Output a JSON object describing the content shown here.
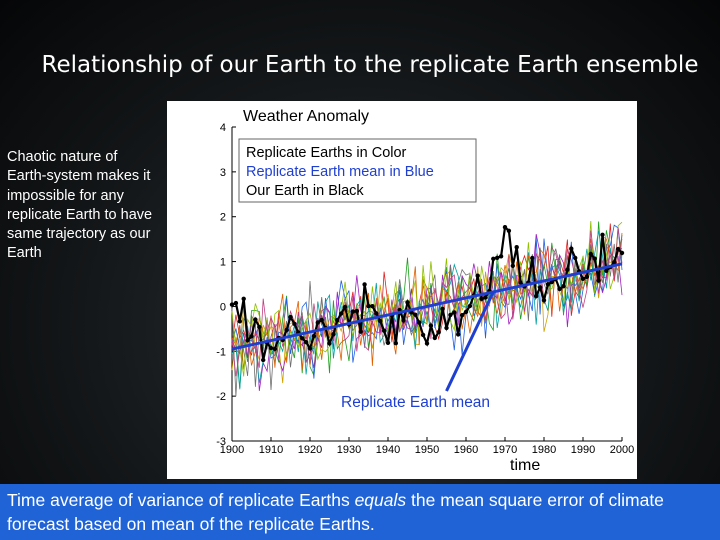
{
  "slide": {
    "title": "Relationship of our Earth to the replicate Earth ensemble",
    "left_note": "Chaotic nature of Earth-system makes it impossible for any replicate Earth to have same trajectory as our Earth",
    "footer": {
      "part1": "Time average of variance of replicate Earths ",
      "emphasis": "equals",
      "part2": " the mean square error of climate forecast based on mean of the replicate Earths."
    }
  },
  "chart_data": {
    "type": "line",
    "title": "Weather Anomaly",
    "xlabel": "time",
    "ylabel": "",
    "xlim": [
      1900,
      2000
    ],
    "ylim": [
      -3,
      4
    ],
    "x_ticks": [
      "1900",
      "1910",
      "1920",
      "1930",
      "1940",
      "1950",
      "1960",
      "1970",
      "1980",
      "1990",
      "2000"
    ],
    "y_ticks": [
      "-3",
      "-2",
      "-1",
      "0",
      "1",
      "2",
      "3",
      "4"
    ],
    "legend": [
      "Replicate Earths in Color",
      "Replicate Earth mean in Blue",
      "Our Earth in Black"
    ],
    "annotation": "Replicate Earth mean",
    "series": [
      {
        "name": "Replicate Earth mean",
        "color": "#1f3fd0",
        "x": [
          1900,
          2000
        ],
        "values": [
          -0.95,
          0.95
        ]
      },
      {
        "name": "Our Earth",
        "color": "#000000",
        "x": [
          1900,
          1905,
          1910,
          1915,
          1920,
          1925,
          1930,
          1935,
          1940,
          1945,
          1950,
          1955,
          1960,
          1965,
          1970,
          1975,
          1980,
          1985,
          1990,
          1995,
          2000
        ],
        "values": [
          0.1,
          -0.4,
          -0.8,
          -0.2,
          -0.9,
          -0.3,
          -0.5,
          0.1,
          -0.6,
          0.0,
          -0.4,
          -0.2,
          -0.3,
          0.4,
          1.6,
          0.6,
          0.3,
          0.8,
          0.7,
          1.2,
          0.8
        ]
      }
    ],
    "colors": {
      "replicates": [
        "#e02020",
        "#20a020",
        "#2060e0",
        "#d0a000",
        "#a020c0",
        "#00a0a0",
        "#e06000",
        "#707070",
        "#90c000",
        "#c04080"
      ]
    }
  }
}
